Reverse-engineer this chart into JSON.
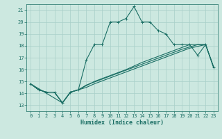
{
  "xlabel": "Humidex (Indice chaleur)",
  "bg_color": "#cce8e0",
  "grid_color": "#a8cfc8",
  "line_color": "#1a6e64",
  "xlim": [
    -0.5,
    23.5
  ],
  "ylim": [
    12.5,
    21.5
  ],
  "yticks": [
    13,
    14,
    15,
    16,
    17,
    18,
    19,
    20,
    21
  ],
  "xticks": [
    0,
    1,
    2,
    3,
    4,
    5,
    6,
    7,
    8,
    9,
    10,
    11,
    12,
    13,
    14,
    15,
    16,
    17,
    18,
    19,
    20,
    21,
    22,
    23
  ],
  "curve_upper": [
    [
      0,
      14.8
    ],
    [
      1,
      14.3
    ],
    [
      2,
      14.1
    ],
    [
      3,
      14.1
    ],
    [
      4,
      13.2
    ],
    [
      5,
      14.1
    ],
    [
      6,
      14.3
    ],
    [
      7,
      16.8
    ],
    [
      8,
      18.1
    ],
    [
      9,
      18.1
    ],
    [
      10,
      20.0
    ],
    [
      11,
      20.0
    ],
    [
      12,
      20.3
    ],
    [
      13,
      21.3
    ],
    [
      14,
      20.0
    ],
    [
      15,
      20.0
    ],
    [
      16,
      19.3
    ],
    [
      17,
      19.0
    ],
    [
      18,
      18.1
    ],
    [
      19,
      18.1
    ],
    [
      20,
      18.1
    ],
    [
      21,
      17.2
    ],
    [
      22,
      18.1
    ],
    [
      23,
      16.2
    ]
  ],
  "curve_straight1": [
    [
      0,
      14.8
    ],
    [
      4,
      13.2
    ],
    [
      5,
      14.1
    ],
    [
      6,
      14.3
    ],
    [
      7,
      14.5
    ],
    [
      8,
      14.8
    ],
    [
      10,
      15.3
    ],
    [
      12,
      15.8
    ],
    [
      14,
      16.3
    ],
    [
      16,
      16.8
    ],
    [
      18,
      17.3
    ],
    [
      20,
      17.8
    ],
    [
      22,
      18.1
    ],
    [
      23,
      16.2
    ]
  ],
  "curve_straight2": [
    [
      0,
      14.8
    ],
    [
      1,
      14.3
    ],
    [
      2,
      14.1
    ],
    [
      3,
      14.1
    ],
    [
      4,
      13.2
    ],
    [
      5,
      14.1
    ],
    [
      6,
      14.3
    ],
    [
      7,
      14.7
    ],
    [
      9,
      15.2
    ],
    [
      11,
      15.7
    ],
    [
      13,
      16.2
    ],
    [
      15,
      16.7
    ],
    [
      17,
      17.2
    ],
    [
      19,
      17.7
    ],
    [
      21,
      18.1
    ],
    [
      22,
      18.1
    ],
    [
      23,
      16.2
    ]
  ],
  "curve_straight3": [
    [
      0,
      14.8
    ],
    [
      1,
      14.3
    ],
    [
      2,
      14.1
    ],
    [
      3,
      14.1
    ],
    [
      4,
      13.2
    ],
    [
      5,
      14.1
    ],
    [
      6,
      14.3
    ],
    [
      8,
      15.0
    ],
    [
      10,
      15.5
    ],
    [
      12,
      16.0
    ],
    [
      14,
      16.6
    ],
    [
      16,
      17.1
    ],
    [
      18,
      17.6
    ],
    [
      20,
      18.1
    ],
    [
      22,
      18.1
    ],
    [
      23,
      16.2
    ]
  ]
}
